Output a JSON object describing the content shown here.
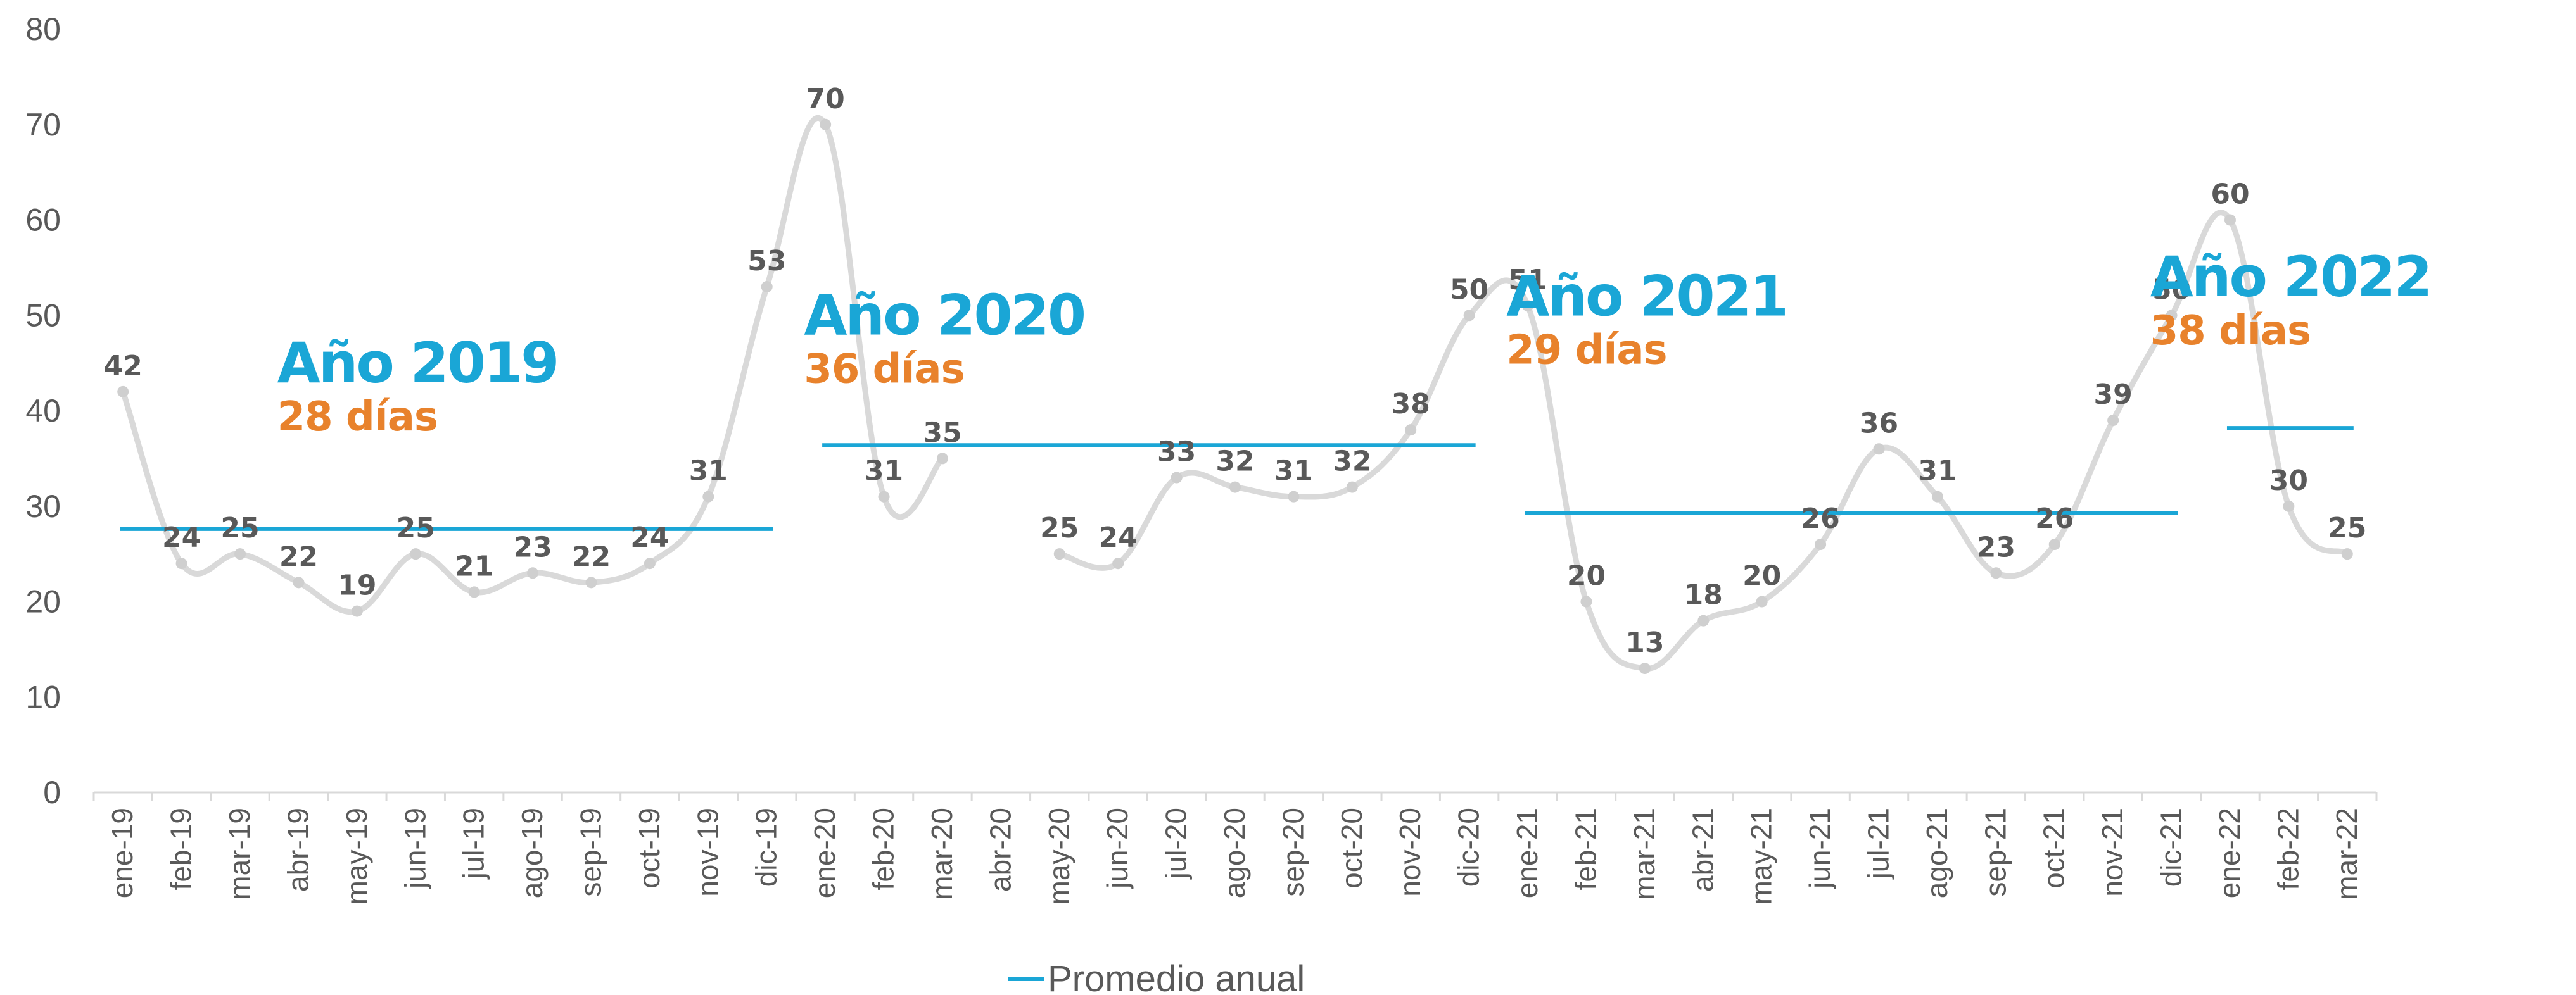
{
  "chart_data": {
    "type": "line",
    "x": [
      "ene-19",
      "feb-19",
      "mar-19",
      "abr-19",
      "may-19",
      "jun-19",
      "jul-19",
      "ago-19",
      "sep-19",
      "oct-19",
      "nov-19",
      "dic-19",
      "ene-20",
      "feb-20",
      "mar-20",
      "abr-20",
      "may-20",
      "jun-20",
      "jul-20",
      "ago-20",
      "sep-20",
      "oct-20",
      "nov-20",
      "dic-20",
      "ene-21",
      "feb-21",
      "mar-21",
      "abr-21",
      "may-21",
      "jun-21",
      "jul-21",
      "ago-21",
      "sep-21",
      "oct-21",
      "nov-21",
      "dic-21",
      "ene-22",
      "feb-22",
      "mar-22"
    ],
    "series": [
      {
        "values": [
          42,
          24,
          25,
          22,
          19,
          25,
          21,
          23,
          22,
          24,
          31,
          53,
          70,
          31,
          35,
          null,
          25,
          24,
          33,
          32,
          31,
          32,
          38,
          50,
          51,
          20,
          13,
          18,
          20,
          26,
          36,
          31,
          23,
          26,
          39,
          50,
          60,
          30,
          25
        ],
        "color": "#d9d9d9"
      },
      {
        "name": "Promedio anual",
        "color": "#1aa6d6",
        "segments": [
          {
            "from": "ene-19",
            "to": "dic-19",
            "value": 27.6
          },
          {
            "from": "ene-20",
            "to": "dic-20",
            "value": 36.4
          },
          {
            "from": "ene-21",
            "to": "dic-21",
            "value": 29.3
          },
          {
            "from": "ene-22",
            "to": "mar-22",
            "value": 38.2
          }
        ]
      }
    ],
    "ylim": [
      0,
      80
    ],
    "yticks": [
      0,
      10,
      20,
      30,
      40,
      50,
      60,
      70,
      80
    ],
    "grid": false,
    "legend": "bottom-center",
    "annotations": [
      {
        "title": "Año 2019",
        "subtitle": "28 días",
        "x": "may-19",
        "y": 43
      },
      {
        "title": "Año 2020",
        "subtitle": "36 días",
        "x": "feb-20",
        "y": 48
      },
      {
        "title": "Año 2021",
        "subtitle": "29 días",
        "x": "feb-21",
        "y": 50
      },
      {
        "title": "Año 2022",
        "subtitle": "38 días",
        "x": "ene-22",
        "y": 52
      }
    ],
    "colors": {
      "title": "#1aa6d6",
      "subtitle": "#e8822c",
      "axis": "#d9d9d9",
      "text": "#595959"
    }
  }
}
